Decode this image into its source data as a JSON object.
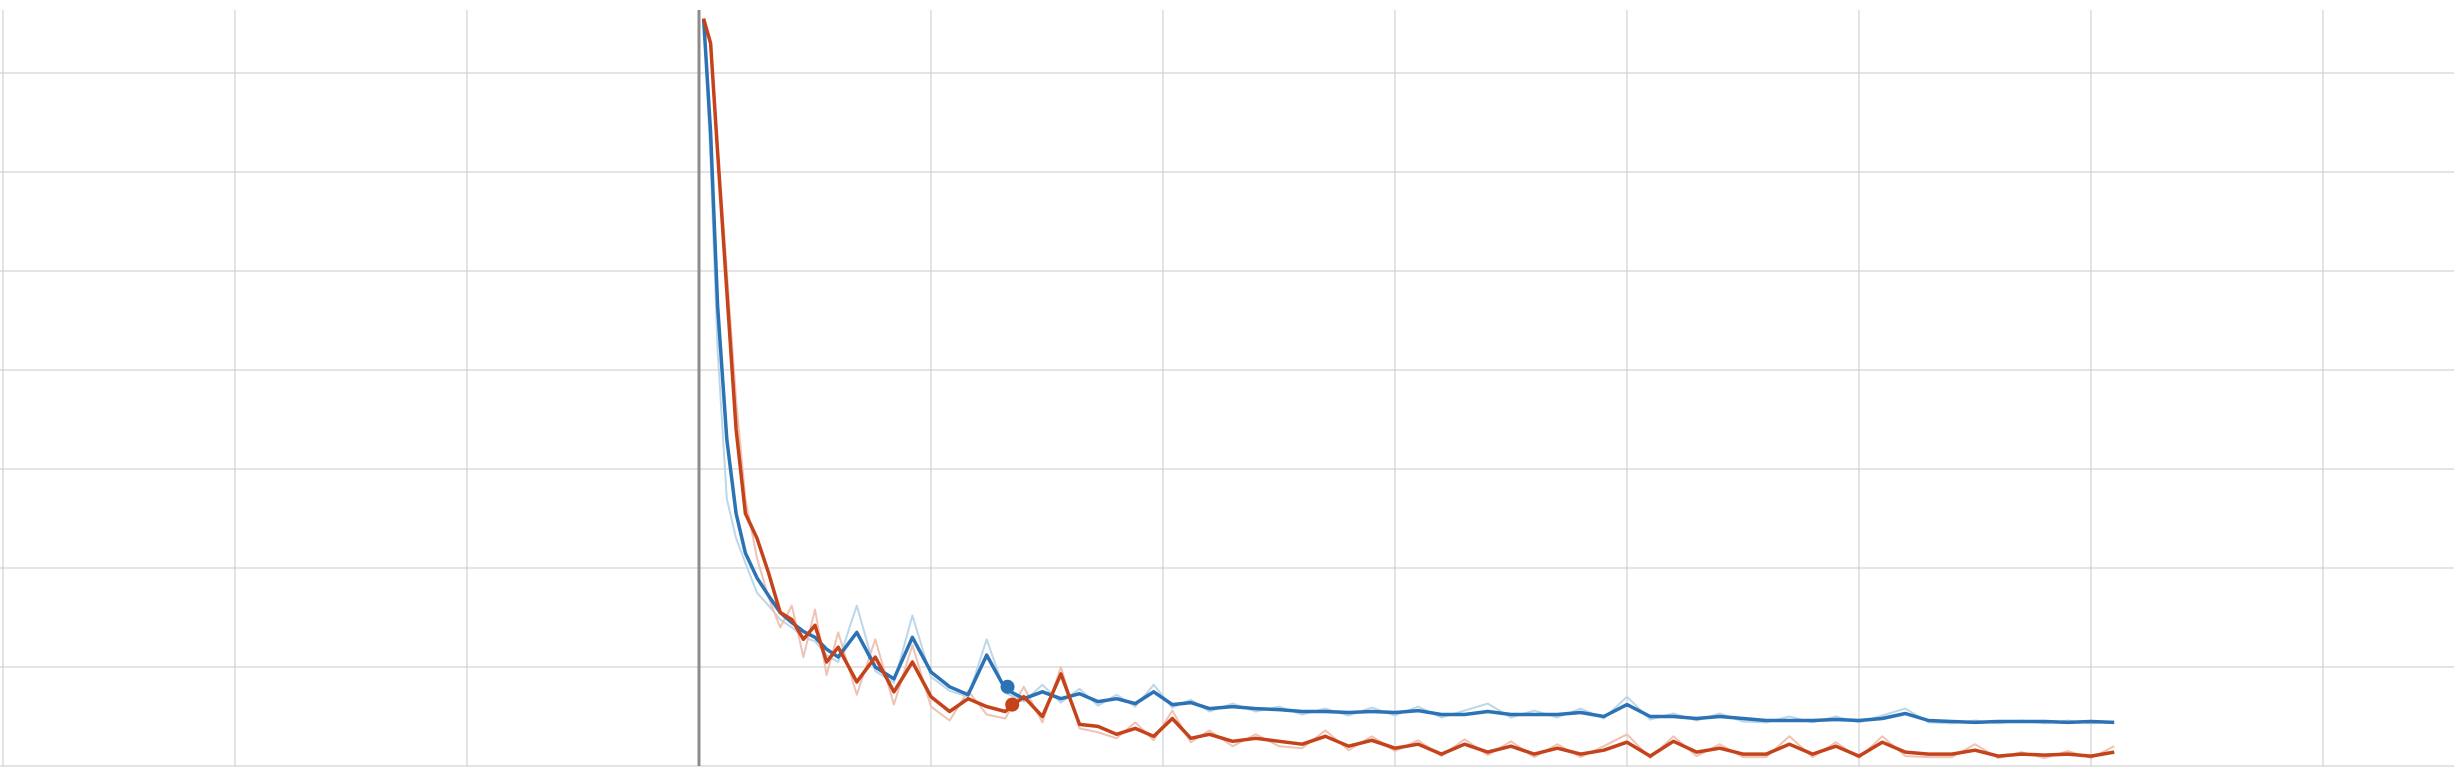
{
  "chart_data": {
    "type": "line",
    "title": "",
    "xlabel": "",
    "ylabel": "",
    "xlim": [
      -3,
      7.5
    ],
    "ylim": [
      0,
      7.6
    ],
    "grid": true,
    "legend": "none",
    "colors": {
      "blue": "#2c73b5",
      "blue_raw": "#bcd6ea",
      "orange": "#c5431a",
      "orange_raw": "#efc2b5",
      "grid": "#c8c8c8",
      "y_axis": "#8c8c8c"
    },
    "series": [
      {
        "x": [
          0.02,
          0.05,
          0.08,
          0.12,
          0.16,
          0.2,
          0.25,
          0.3,
          0.35,
          0.4,
          0.45,
          0.5,
          0.55,
          0.6,
          0.68,
          0.76,
          0.84,
          0.92,
          1.0,
          1.08,
          1.16,
          1.24,
          1.32,
          1.4,
          1.48,
          1.56,
          1.64,
          1.72,
          1.8,
          1.88,
          1.96,
          2.04,
          2.12,
          2.2,
          2.3,
          2.4,
          2.5,
          2.6,
          2.7,
          2.8,
          2.9,
          3.0,
          3.1,
          3.2,
          3.3,
          3.4,
          3.5,
          3.6,
          3.7,
          3.8,
          3.9,
          4.0,
          4.1,
          4.2,
          4.3,
          4.4,
          4.5,
          4.6,
          4.7,
          4.8,
          4.9,
          5.0,
          5.1,
          5.2,
          5.3,
          5.4,
          5.5,
          5.6,
          5.7,
          5.8,
          5.9,
          6.0,
          6.1
        ],
        "values": [
          7.55,
          6.4,
          4.65,
          3.3,
          2.55,
          2.15,
          1.9,
          1.72,
          1.55,
          1.45,
          1.36,
          1.3,
          1.18,
          1.1,
          1.35,
          1.0,
          0.88,
          1.3,
          0.95,
          0.8,
          0.72,
          1.12,
          0.78,
          0.68,
          0.75,
          0.68,
          0.73,
          0.65,
          0.68,
          0.63,
          0.75,
          0.62,
          0.64,
          0.58,
          0.6,
          0.58,
          0.57,
          0.55,
          0.55,
          0.54,
          0.55,
          0.54,
          0.56,
          0.52,
          0.52,
          0.55,
          0.52,
          0.52,
          0.52,
          0.54,
          0.5,
          0.62,
          0.5,
          0.5,
          0.48,
          0.5,
          0.48,
          0.46,
          0.46,
          0.46,
          0.47,
          0.46,
          0.48,
          0.53,
          0.46,
          0.45,
          0.44,
          0.45,
          0.45,
          0.45,
          0.44,
          0.45,
          0.44
        ],
        "raw_values": [
          7.55,
          6.1,
          4.2,
          2.7,
          2.3,
          2.05,
          1.75,
          1.62,
          1.48,
          1.4,
          1.3,
          1.26,
          1.12,
          1.05,
          1.62,
          0.96,
          0.84,
          1.52,
          0.9,
          0.76,
          0.7,
          1.28,
          0.74,
          0.65,
          0.82,
          0.64,
          0.78,
          0.61,
          0.72,
          0.6,
          0.82,
          0.59,
          0.67,
          0.55,
          0.63,
          0.55,
          0.6,
          0.52,
          0.58,
          0.51,
          0.59,
          0.51,
          0.6,
          0.49,
          0.56,
          0.63,
          0.49,
          0.56,
          0.49,
          0.58,
          0.48,
          0.7,
          0.47,
          0.53,
          0.46,
          0.53,
          0.45,
          0.44,
          0.5,
          0.44,
          0.5,
          0.44,
          0.51,
          0.58,
          0.44,
          0.43,
          0.46,
          0.43,
          0.46,
          0.43,
          0.46,
          0.43,
          0.45
        ],
        "marker": {
          "x": 1.33,
          "y": 0.8
        },
        "color": "blue"
      },
      {
        "x": [
          0.02,
          0.05,
          0.08,
          0.12,
          0.16,
          0.2,
          0.25,
          0.3,
          0.35,
          0.4,
          0.45,
          0.5,
          0.55,
          0.6,
          0.68,
          0.76,
          0.84,
          0.92,
          1.0,
          1.08,
          1.16,
          1.24,
          1.32,
          1.4,
          1.48,
          1.56,
          1.64,
          1.72,
          1.8,
          1.88,
          1.96,
          2.04,
          2.12,
          2.2,
          2.3,
          2.4,
          2.5,
          2.6,
          2.7,
          2.8,
          2.9,
          3.0,
          3.1,
          3.2,
          3.3,
          3.4,
          3.5,
          3.6,
          3.7,
          3.8,
          3.9,
          4.0,
          4.1,
          4.2,
          4.3,
          4.4,
          4.5,
          4.6,
          4.7,
          4.8,
          4.9,
          5.0,
          5.1,
          5.2,
          5.3,
          5.4,
          5.5,
          5.6,
          5.7,
          5.8,
          5.9,
          6.0,
          6.1
        ],
        "values": [
          7.55,
          7.3,
          6.2,
          4.8,
          3.4,
          2.55,
          2.3,
          1.95,
          1.55,
          1.48,
          1.28,
          1.42,
          1.05,
          1.2,
          0.85,
          1.1,
          0.75,
          1.05,
          0.7,
          0.55,
          0.68,
          0.6,
          0.55,
          0.7,
          0.5,
          0.93,
          0.42,
          0.4,
          0.32,
          0.38,
          0.3,
          0.48,
          0.28,
          0.32,
          0.25,
          0.28,
          0.25,
          0.22,
          0.3,
          0.2,
          0.26,
          0.18,
          0.22,
          0.12,
          0.22,
          0.14,
          0.2,
          0.12,
          0.18,
          0.12,
          0.16,
          0.24,
          0.1,
          0.25,
          0.14,
          0.18,
          0.12,
          0.12,
          0.22,
          0.12,
          0.2,
          0.1,
          0.24,
          0.14,
          0.12,
          0.12,
          0.16,
          0.1,
          0.12,
          0.11,
          0.12,
          0.1,
          0.14
        ],
        "raw_values": [
          7.55,
          7.3,
          6.3,
          5.0,
          3.7,
          2.7,
          2.1,
          1.7,
          1.4,
          1.62,
          1.1,
          1.58,
          0.92,
          1.35,
          0.72,
          1.28,
          0.62,
          1.22,
          0.6,
          0.46,
          0.76,
          0.52,
          0.48,
          0.8,
          0.44,
          1.0,
          0.38,
          0.34,
          0.28,
          0.44,
          0.26,
          0.56,
          0.24,
          0.36,
          0.2,
          0.32,
          0.2,
          0.18,
          0.36,
          0.16,
          0.3,
          0.15,
          0.26,
          0.1,
          0.27,
          0.11,
          0.25,
          0.09,
          0.22,
          0.09,
          0.2,
          0.32,
          0.08,
          0.3,
          0.1,
          0.22,
          0.09,
          0.09,
          0.3,
          0.09,
          0.24,
          0.08,
          0.3,
          0.1,
          0.09,
          0.09,
          0.22,
          0.08,
          0.14,
          0.08,
          0.15,
          0.08,
          0.2
        ],
        "marker": {
          "x": 1.35,
          "y": 0.62
        },
        "color": "orange"
      }
    ],
    "grid_x_spacing": 1.0,
    "grid_y_spacing": 1.0
  }
}
